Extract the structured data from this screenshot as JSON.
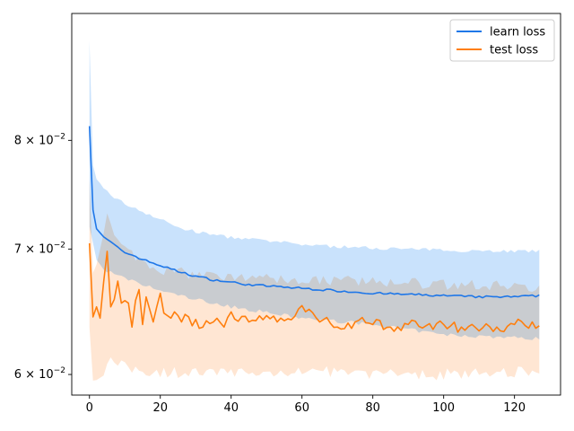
{
  "chart_data": {
    "type": "line",
    "title": "",
    "xlabel": "",
    "ylabel": "",
    "yscale": "log",
    "xlim": [
      -5,
      133
    ],
    "ylim": [
      0.0585,
      0.0935
    ],
    "grid": false,
    "legend_position": "top-right",
    "x_ticks": [
      0,
      20,
      40,
      60,
      80,
      100,
      120
    ],
    "x_tick_labels": [
      "0",
      "20",
      "40",
      "60",
      "80",
      "100",
      "120"
    ],
    "y_ticks": [
      {
        "value": 0.06,
        "mantissa": "6",
        "exponent": "−2"
      },
      {
        "value": 0.07,
        "mantissa": "7",
        "exponent": "−2"
      },
      {
        "value": 0.08,
        "mantissa": "8",
        "exponent": "−2"
      }
    ],
    "series": [
      {
        "name": "learn loss",
        "color": "#1f77e8",
        "band_color": "#c9e2fc",
        "knots": [
          [
            0,
            0.0815
          ],
          [
            1,
            0.0735
          ],
          [
            2,
            0.0718
          ],
          [
            3,
            0.0714
          ],
          [
            4,
            0.071
          ],
          [
            6,
            0.0706
          ],
          [
            8,
            0.0701
          ],
          [
            10,
            0.0697
          ],
          [
            12,
            0.0695
          ],
          [
            15,
            0.0691
          ],
          [
            18,
            0.0688
          ],
          [
            20,
            0.0686
          ],
          [
            25,
            0.0681
          ],
          [
            30,
            0.0677
          ],
          [
            35,
            0.0674
          ],
          [
            40,
            0.0672
          ],
          [
            45,
            0.067
          ],
          [
            50,
            0.0669
          ],
          [
            55,
            0.0668
          ],
          [
            60,
            0.0667
          ],
          [
            65,
            0.0666
          ],
          [
            70,
            0.0665
          ],
          [
            75,
            0.0664
          ],
          [
            80,
            0.0663
          ],
          [
            90,
            0.0662
          ],
          [
            100,
            0.0661
          ],
          [
            110,
            0.066
          ],
          [
            120,
            0.066
          ],
          [
            127,
            0.0661
          ]
        ],
        "upper_knots": [
          [
            0,
            0.0903
          ],
          [
            1,
            0.0775
          ],
          [
            2,
            0.0762
          ],
          [
            4,
            0.0755
          ],
          [
            6,
            0.0748
          ],
          [
            10,
            0.074
          ],
          [
            15,
            0.0733
          ],
          [
            20,
            0.0726
          ],
          [
            25,
            0.0719
          ],
          [
            30,
            0.0715
          ],
          [
            40,
            0.071
          ],
          [
            50,
            0.0707
          ],
          [
            60,
            0.0704
          ],
          [
            70,
            0.0702
          ],
          [
            80,
            0.0701
          ],
          [
            100,
            0.0699
          ],
          [
            127,
            0.0698
          ]
        ],
        "lower_knots": [
          [
            0,
            0.072
          ],
          [
            1,
            0.0705
          ],
          [
            2,
            0.069
          ],
          [
            4,
            0.0683
          ],
          [
            6,
            0.068
          ],
          [
            10,
            0.0675
          ],
          [
            15,
            0.067
          ],
          [
            20,
            0.0665
          ],
          [
            30,
            0.0658
          ],
          [
            40,
            0.0652
          ],
          [
            60,
            0.0643
          ],
          [
            80,
            0.0638
          ],
          [
            100,
            0.063
          ],
          [
            127,
            0.0627
          ]
        ],
        "noise": 0.00018,
        "band_noise": 0.0003
      },
      {
        "name": "test loss",
        "color": "#ff7f0e",
        "band_color": "#ffdcc0",
        "knots": [
          [
            0,
            0.0705
          ],
          [
            1,
            0.0644
          ],
          [
            2,
            0.0652
          ],
          [
            3,
            0.0643
          ],
          [
            4,
            0.0672
          ],
          [
            5,
            0.0698
          ],
          [
            6,
            0.0652
          ],
          [
            7,
            0.0658
          ],
          [
            8,
            0.0673
          ],
          [
            9,
            0.0655
          ],
          [
            10,
            0.0657
          ],
          [
            11,
            0.0655
          ],
          [
            12,
            0.0636
          ],
          [
            13,
            0.0657
          ],
          [
            14,
            0.0666
          ],
          [
            15,
            0.0638
          ],
          [
            16,
            0.066
          ],
          [
            17,
            0.065
          ],
          [
            18,
            0.064
          ],
          [
            19,
            0.0652
          ],
          [
            20,
            0.0663
          ],
          [
            21,
            0.0647
          ],
          [
            22,
            0.0645
          ],
          [
            23,
            0.0643
          ],
          [
            24,
            0.0648
          ],
          [
            25,
            0.0645
          ],
          [
            26,
            0.064
          ],
          [
            27,
            0.0646
          ],
          [
            28,
            0.0644
          ],
          [
            29,
            0.0637
          ],
          [
            30,
            0.0642
          ],
          [
            31,
            0.0635
          ],
          [
            35,
            0.064
          ],
          [
            38,
            0.0636
          ],
          [
            40,
            0.0648
          ],
          [
            45,
            0.064
          ],
          [
            50,
            0.0645
          ],
          [
            55,
            0.0641
          ],
          [
            60,
            0.0653
          ],
          [
            62,
            0.065
          ],
          [
            65,
            0.064
          ],
          [
            68,
            0.0639
          ],
          [
            70,
            0.0636
          ],
          [
            75,
            0.064
          ],
          [
            80,
            0.0638
          ],
          [
            85,
            0.0636
          ],
          [
            90,
            0.0638
          ],
          [
            95,
            0.0637
          ],
          [
            100,
            0.0638
          ],
          [
            105,
            0.0636
          ],
          [
            110,
            0.0633
          ],
          [
            115,
            0.0636
          ],
          [
            120,
            0.0638
          ],
          [
            125,
            0.064
          ],
          [
            127,
            0.0637
          ]
        ],
        "upper_knots": [
          [
            0,
            0.0765
          ],
          [
            1,
            0.068
          ],
          [
            3,
            0.07
          ],
          [
            5,
            0.0735
          ],
          [
            7,
            0.071
          ],
          [
            10,
            0.07
          ],
          [
            15,
            0.069
          ],
          [
            20,
            0.0683
          ],
          [
            30,
            0.0678
          ],
          [
            40,
            0.0676
          ],
          [
            60,
            0.0674
          ],
          [
            80,
            0.0673
          ],
          [
            100,
            0.067
          ],
          [
            127,
            0.0668
          ]
        ],
        "lower_knots": [
          [
            0,
            0.064
          ],
          [
            1,
            0.0595
          ],
          [
            3,
            0.06
          ],
          [
            6,
            0.061
          ],
          [
            10,
            0.0605
          ],
          [
            15,
            0.0603
          ],
          [
            20,
            0.0602
          ],
          [
            40,
            0.0601
          ],
          [
            60,
            0.0602
          ],
          [
            80,
            0.0601
          ],
          [
            100,
            0.06
          ],
          [
            127,
            0.0603
          ]
        ],
        "noise": 0.0009,
        "band_noise": 0.0009
      }
    ],
    "x_count": 128
  }
}
